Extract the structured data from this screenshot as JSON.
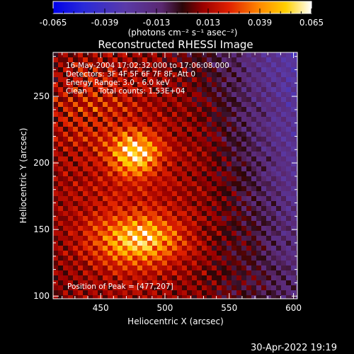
{
  "colorbar": {
    "ticks": [
      "-0.065",
      "-0.039",
      "-0.013",
      "0.013",
      "0.039",
      "0.065"
    ],
    "units_label": "(photons cm⁻² s⁻¹ asec⁻²)",
    "range": [
      -0.065,
      0.065
    ]
  },
  "chart_data": {
    "type": "heatmap",
    "title": "Reconstructed RHESSI Image",
    "xlabel": "Heliocentric X (arcsec)",
    "ylabel": "Heliocentric Y (arcsec)",
    "xlim": [
      413,
      603
    ],
    "ylim": [
      98,
      283
    ],
    "xticks": [
      450,
      500,
      550,
      600
    ],
    "yticks": [
      100,
      150,
      200,
      250
    ],
    "annotations": [
      "16-May-2004 17:02:32.000 to 17:06:08.000",
      "Detectors: 3F 4F 5F 6F 7F 8F, Att 0",
      "Energy Range: 3.0 - 6.0 keV",
      "Clean     Total counts: 1.53E+04"
    ],
    "peak_label": "Position of Peak = [477,207]",
    "peak": [
      477,
      207
    ],
    "grid": false
  },
  "footer": {
    "timestamp": "30-Apr-2022 19:19"
  }
}
